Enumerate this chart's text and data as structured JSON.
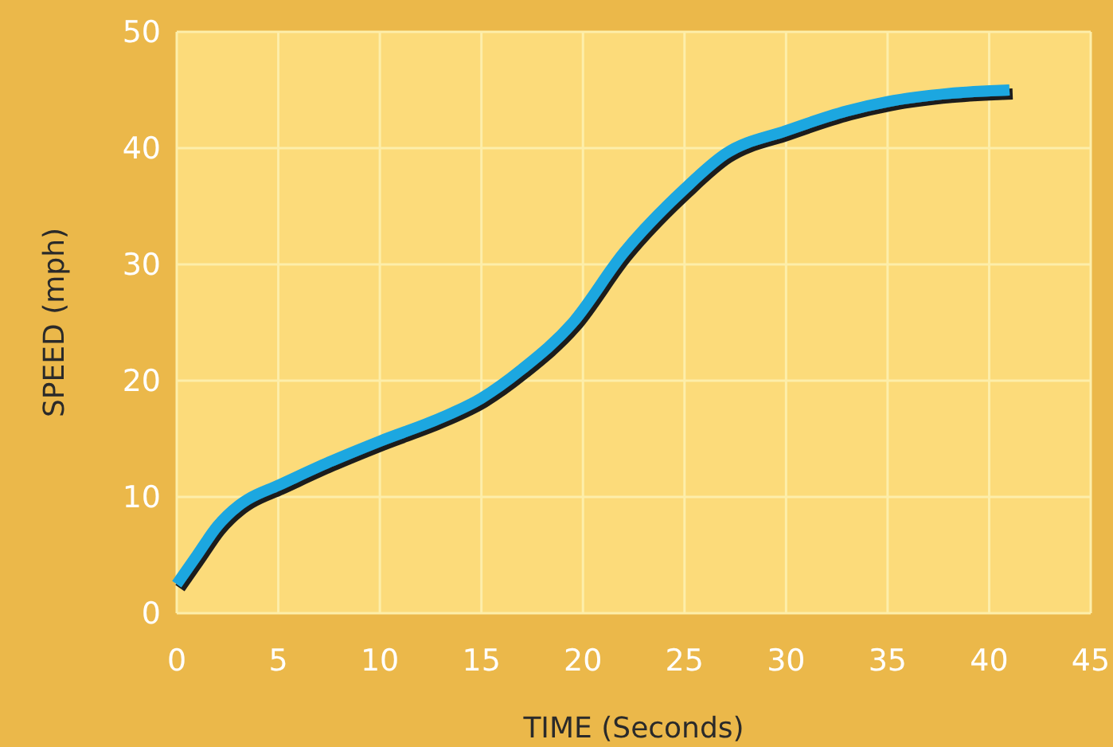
{
  "chart_data": {
    "type": "line",
    "xlabel": "TIME (Seconds)",
    "ylabel": "SPEED (mph)",
    "xlim": [
      0,
      45
    ],
    "ylim": [
      0,
      50
    ],
    "xticks": [
      0,
      5,
      10,
      15,
      20,
      25,
      30,
      35,
      40,
      45
    ],
    "yticks": [
      0,
      10,
      20,
      30,
      40,
      50
    ],
    "grid": true,
    "series": [
      {
        "color": "#1aa7e0",
        "x": [
          0,
          1,
          2,
          3,
          3.5,
          5,
          7.5,
          10,
          13,
          15,
          17,
          19.5,
          22,
          25,
          27,
          30,
          33,
          35,
          38,
          41
        ],
        "values": [
          2.5,
          5,
          7.5,
          9.2,
          9.8,
          11,
          13,
          14.8,
          16.8,
          18.5,
          21,
          25,
          31,
          36.5,
          39.5,
          41.5,
          43.2,
          44,
          44.7,
          45
        ]
      }
    ]
  }
}
